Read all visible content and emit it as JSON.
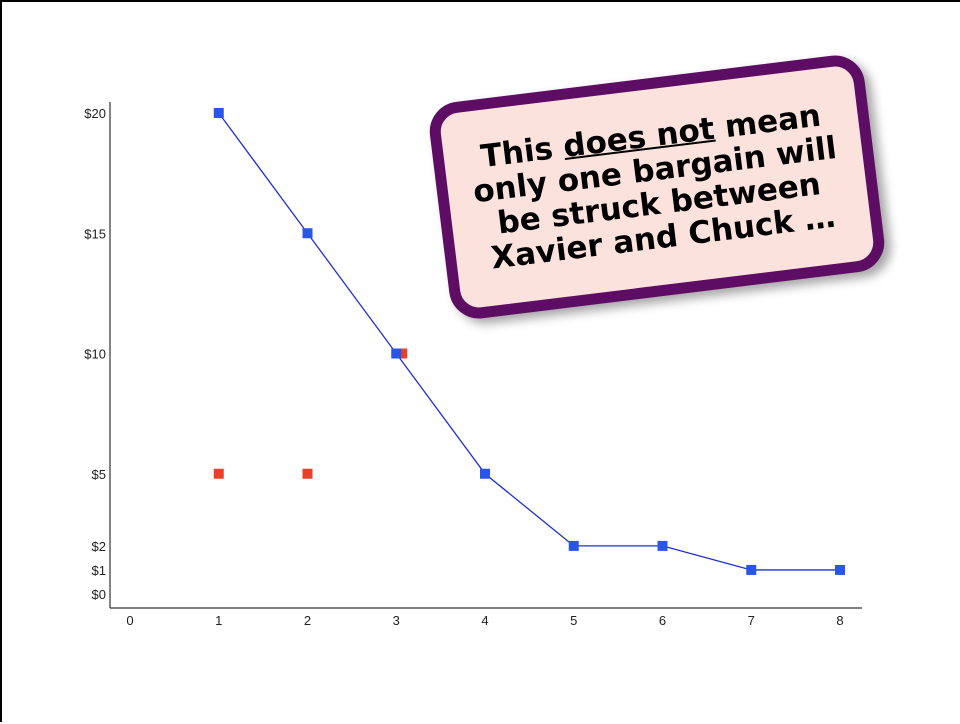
{
  "chart_data": {
    "type": "scatter",
    "x_ticks": [
      "0",
      "1",
      "2",
      "3",
      "4",
      "5",
      "6",
      "7",
      "8"
    ],
    "y_ticks": [
      {
        "value": 0,
        "label": "$0"
      },
      {
        "value": 1,
        "label": "$1"
      },
      {
        "value": 2,
        "label": "$2"
      },
      {
        "value": 5,
        "label": "$5"
      },
      {
        "value": 10,
        "label": "$10"
      },
      {
        "value": 15,
        "label": "$15"
      },
      {
        "value": 20,
        "label": "$20"
      }
    ],
    "xlim": [
      0,
      8
    ],
    "ylim": [
      0,
      20
    ],
    "grid": false,
    "series": [
      {
        "style": "line-with-square-markers",
        "color": "#2a56e8",
        "line_color": "#1f2fd6",
        "points": [
          {
            "x": 1,
            "y": 20
          },
          {
            "x": 2,
            "y": 15
          },
          {
            "x": 3,
            "y": 10
          },
          {
            "x": 4,
            "y": 5
          },
          {
            "x": 5,
            "y": 2
          },
          {
            "x": 6,
            "y": 2
          },
          {
            "x": 7,
            "y": 1
          },
          {
            "x": 8,
            "y": 1
          }
        ]
      },
      {
        "style": "square-markers",
        "color": "#e8412a",
        "points": [
          {
            "x": 1,
            "y": 5
          },
          {
            "x": 2,
            "y": 5
          },
          {
            "x": 3,
            "y": 10
          }
        ]
      }
    ]
  },
  "callout": {
    "before": "This ",
    "emphasis": "does not",
    "after": " mean only one bargain will be struck between Xavier and Chuck …",
    "fill_color": "#fbe2dc",
    "border_color": "#5e0d64"
  }
}
